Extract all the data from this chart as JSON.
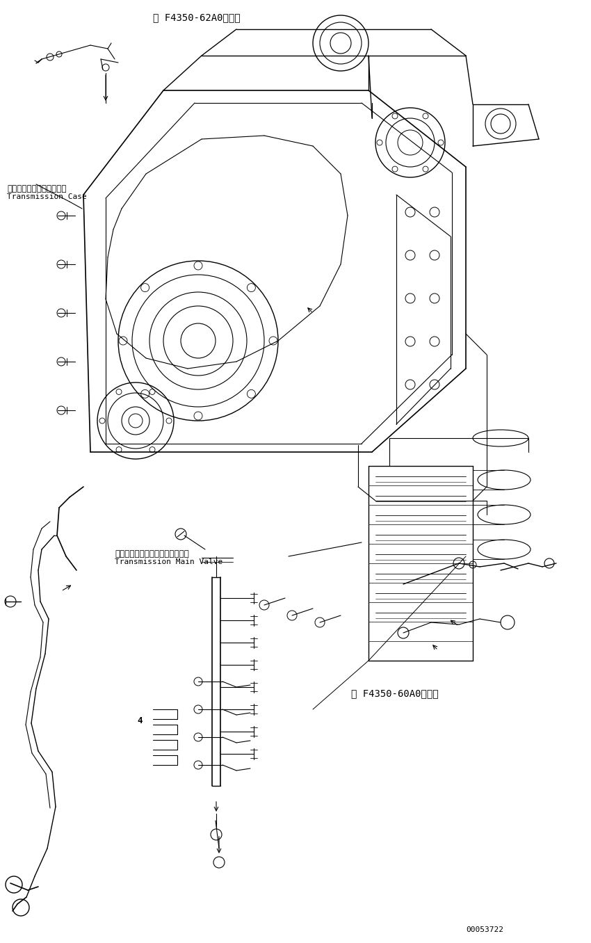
{
  "background_color": "#ffffff",
  "line_color": "#000000",
  "text_color": "#000000",
  "label_top": "第 F4350-62A0図参照",
  "label_transmission_case_jp": "トランスミッションケース",
  "label_transmission_case_en": "Transmission Case",
  "label_main_valve_jp": "トランスミッションメインバルブ",
  "label_main_valve_en": "Transmission Main Valve",
  "label_bottom_ref": "第 F4350-60A0図参照",
  "label_4": "4",
  "label_serial": "00053722",
  "fig_width": 8.5,
  "fig_height": 13.56,
  "dpi": 100
}
